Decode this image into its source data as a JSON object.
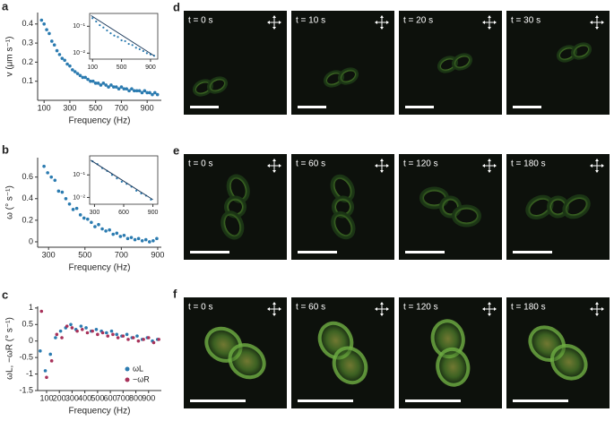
{
  "panel_labels": [
    "a",
    "b",
    "c"
  ],
  "chart_data": [
    {
      "type": "scatter",
      "xlabel": "Frequency (Hz)",
      "ylabel": "v (μm s⁻¹)",
      "xlim": [
        50,
        1010
      ],
      "ylim": [
        0.0,
        0.46
      ],
      "xticks": [
        100,
        300,
        500,
        700,
        900
      ],
      "yticks": [
        0.1,
        0.2,
        0.3,
        0.4
      ],
      "series": [
        {
          "color": "#2b7bb0",
          "x": [
            80,
            100,
            120,
            140,
            160,
            180,
            200,
            220,
            240,
            260,
            280,
            300,
            320,
            340,
            360,
            380,
            400,
            420,
            440,
            460,
            480,
            500,
            520,
            540,
            560,
            580,
            600,
            620,
            640,
            660,
            680,
            700,
            720,
            740,
            760,
            780,
            800,
            820,
            840,
            860,
            880,
            900,
            920,
            940,
            960,
            980
          ],
          "values": [
            0.42,
            0.4,
            0.37,
            0.35,
            0.31,
            0.29,
            0.26,
            0.24,
            0.22,
            0.21,
            0.19,
            0.18,
            0.16,
            0.15,
            0.14,
            0.13,
            0.12,
            0.12,
            0.11,
            0.1,
            0.1,
            0.09,
            0.09,
            0.08,
            0.09,
            0.08,
            0.07,
            0.08,
            0.07,
            0.07,
            0.06,
            0.07,
            0.06,
            0.06,
            0.05,
            0.06,
            0.05,
            0.05,
            0.05,
            0.04,
            0.05,
            0.04,
            0.04,
            0.03,
            0.04,
            0.03
          ]
        }
      ]
    },
    {
      "type": "scatter",
      "log_y": true,
      "frame": true,
      "xlim": [
        60,
        1000
      ],
      "ylim": [
        0.006,
        0.3
      ],
      "xticks": [
        100,
        500,
        900
      ],
      "yticks": [
        {
          "value": 0.1,
          "label": "10⁻¹"
        },
        {
          "value": 0.01,
          "label": "10⁻²"
        }
      ],
      "series": [
        {
          "color": "#2b7bb0",
          "x": [
            100,
            150,
            200,
            250,
            300,
            350,
            400,
            450,
            500,
            550,
            600,
            650,
            700,
            750,
            800,
            850,
            900,
            950
          ],
          "values": [
            0.2,
            0.15,
            0.11,
            0.09,
            0.07,
            0.055,
            0.045,
            0.04,
            0.03,
            0.028,
            0.022,
            0.02,
            0.016,
            0.014,
            0.012,
            0.01,
            0.009,
            0.008
          ]
        },
        {
          "mode": "line",
          "color": "#1d3b5c",
          "x": [
            80,
            950
          ],
          "values": [
            0.25,
            0.008
          ]
        }
      ]
    },
    {
      "type": "scatter",
      "xlabel": "Frequency (Hz)",
      "ylabel": "ω (° s⁻¹)",
      "xlim": [
        240,
        920
      ],
      "ylim": [
        -0.05,
        0.78
      ],
      "xticks": [
        300,
        500,
        700,
        900
      ],
      "yticks": [
        0,
        0.2,
        0.4,
        0.6
      ],
      "series": [
        {
          "color": "#2b7bb0",
          "x": [
            275,
            295,
            315,
            335,
            355,
            375,
            395,
            415,
            435,
            455,
            475,
            495,
            515,
            535,
            555,
            575,
            595,
            615,
            635,
            655,
            675,
            695,
            715,
            735,
            755,
            775,
            795,
            815,
            835,
            855,
            875,
            895
          ],
          "values": [
            0.7,
            0.64,
            0.6,
            0.57,
            0.47,
            0.46,
            0.4,
            0.35,
            0.3,
            0.31,
            0.25,
            0.22,
            0.21,
            0.18,
            0.14,
            0.16,
            0.12,
            0.1,
            0.11,
            0.07,
            0.08,
            0.05,
            0.06,
            0.03,
            0.04,
            0.02,
            0.03,
            0.01,
            0.02,
            0.0,
            0.01,
            0.03
          ]
        }
      ]
    },
    {
      "type": "scatter",
      "log_y": true,
      "frame": true,
      "xlim": [
        250,
        950
      ],
      "ylim": [
        0.005,
        0.7
      ],
      "xticks": [
        300,
        600,
        900
      ],
      "yticks": [
        {
          "value": 0.1,
          "label": "10⁻¹"
        },
        {
          "value": 0.01,
          "label": "10⁻²"
        }
      ],
      "series": [
        {
          "color": "#2b7bb0",
          "x": [
            280,
            330,
            380,
            430,
            480,
            530,
            580,
            630,
            680,
            730,
            780,
            830,
            880
          ],
          "values": [
            0.4,
            0.3,
            0.2,
            0.15,
            0.1,
            0.07,
            0.05,
            0.04,
            0.03,
            0.02,
            0.015,
            0.012,
            0.008
          ]
        },
        {
          "mode": "line",
          "color": "#1d3b5c",
          "x": [
            260,
            900
          ],
          "values": [
            0.45,
            0.008
          ]
        }
      ]
    },
    {
      "type": "scatter",
      "xlabel": "Frequency (Hz)",
      "ylabel": "ωL, −ωR (° s⁻¹)",
      "xlim": [
        30,
        1000
      ],
      "ylim": [
        -1.5,
        1.05
      ],
      "xticks": [
        100,
        200,
        300,
        400,
        500,
        600,
        700,
        800,
        900
      ],
      "yticks": [
        1,
        0.5,
        0,
        -0.5,
        -1,
        -1.5
      ],
      "legend": "lower right",
      "series": [
        {
          "name": "ωL",
          "color": "#2b7bb0",
          "x": [
            50,
            90,
            130,
            170,
            210,
            250,
            290,
            330,
            370,
            410,
            450,
            490,
            530,
            570,
            610,
            650,
            690,
            730,
            770,
            810,
            850,
            890,
            930,
            970
          ],
          "values": [
            -0.3,
            -0.9,
            -0.4,
            0.1,
            0.3,
            0.4,
            0.5,
            0.35,
            0.45,
            0.4,
            0.3,
            0.35,
            0.3,
            0.25,
            0.3,
            0.2,
            0.15,
            0.2,
            0.1,
            0.15,
            0.05,
            0.1,
            0.0,
            0.05
          ]
        },
        {
          "name": "−ωR",
          "color": "#a8325a",
          "x": [
            60,
            100,
            140,
            180,
            220,
            260,
            300,
            340,
            380,
            420,
            460,
            500,
            540,
            580,
            620,
            660,
            700,
            740,
            780,
            820,
            860,
            900,
            940,
            980
          ],
          "values": [
            0.9,
            -1.1,
            -0.6,
            0.2,
            0.1,
            0.45,
            0.4,
            0.3,
            0.35,
            0.25,
            0.3,
            0.2,
            0.25,
            0.15,
            0.2,
            0.1,
            0.15,
            0.05,
            0.1,
            0.0,
            0.05,
            0.1,
            -0.05,
            0.05
          ]
        }
      ]
    }
  ],
  "image_panels": [
    {
      "letter": "d",
      "times": [
        "t = 0 s",
        "t = 10 s",
        "t = 20 s",
        "t = 30 s"
      ]
    },
    {
      "letter": "e",
      "times": [
        "t = 0 s",
        "t = 60 s",
        "t = 120 s",
        "t = 180 s"
      ]
    },
    {
      "letter": "f",
      "times": [
        "t = 0 s",
        "t = 60 s",
        "t = 120 s",
        "t = 180 s"
      ]
    }
  ]
}
